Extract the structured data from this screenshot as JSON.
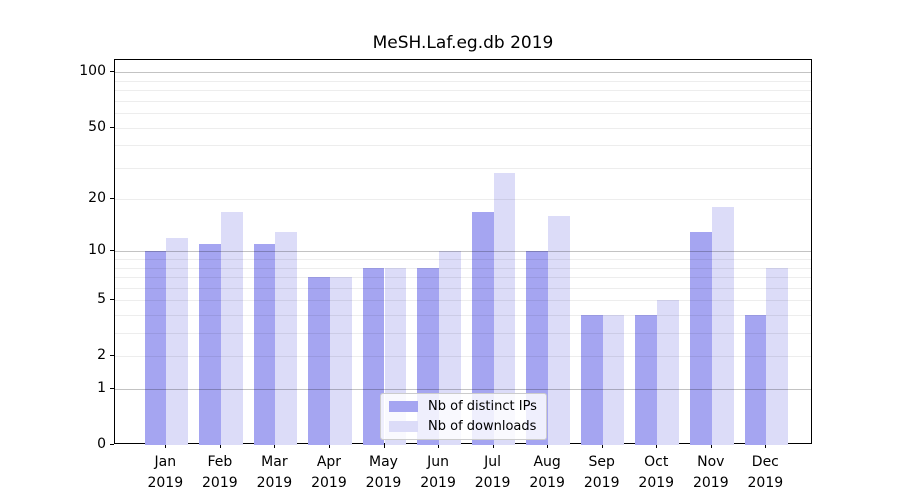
{
  "chart_data": {
    "type": "bar",
    "title": "MeSH.Laf.eg.db 2019",
    "categories": [
      "Jan",
      "Feb",
      "Mar",
      "Apr",
      "May",
      "Jun",
      "Jul",
      "Aug",
      "Sep",
      "Oct",
      "Nov",
      "Dec"
    ],
    "x_sublabel": "2019",
    "series": [
      {
        "name": "Nb of distinct IPs",
        "color": "#a5a5f1",
        "values": [
          10,
          11,
          11,
          7,
          8,
          8,
          17,
          10,
          4,
          4,
          13,
          4
        ]
      },
      {
        "name": "Nb of downloads",
        "color": "#dcdcf8",
        "values": [
          12,
          17,
          13,
          7,
          8,
          10,
          28,
          16,
          4,
          5,
          18,
          8
        ]
      }
    ],
    "yscale": "log1p",
    "ylim": [
      0,
      117
    ],
    "y_ticks": [
      0,
      1,
      2,
      5,
      10,
      20,
      50,
      100
    ],
    "y_major_gridlines": [
      1,
      10,
      100
    ],
    "y_minor_gridlines": [
      2,
      3,
      4,
      5,
      6,
      7,
      8,
      9,
      20,
      30,
      40,
      50,
      60,
      70,
      80,
      90
    ],
    "legend": {
      "position": "lower center inside",
      "entries": [
        "Nb of distinct IPs",
        "Nb of downloads"
      ]
    },
    "grid": "on",
    "xlabel": "",
    "ylabel": ""
  },
  "colors": {
    "axis": "#000000",
    "text": "#000000",
    "legend_border": "#cccccc",
    "legend_bg": "#ffffff"
  }
}
